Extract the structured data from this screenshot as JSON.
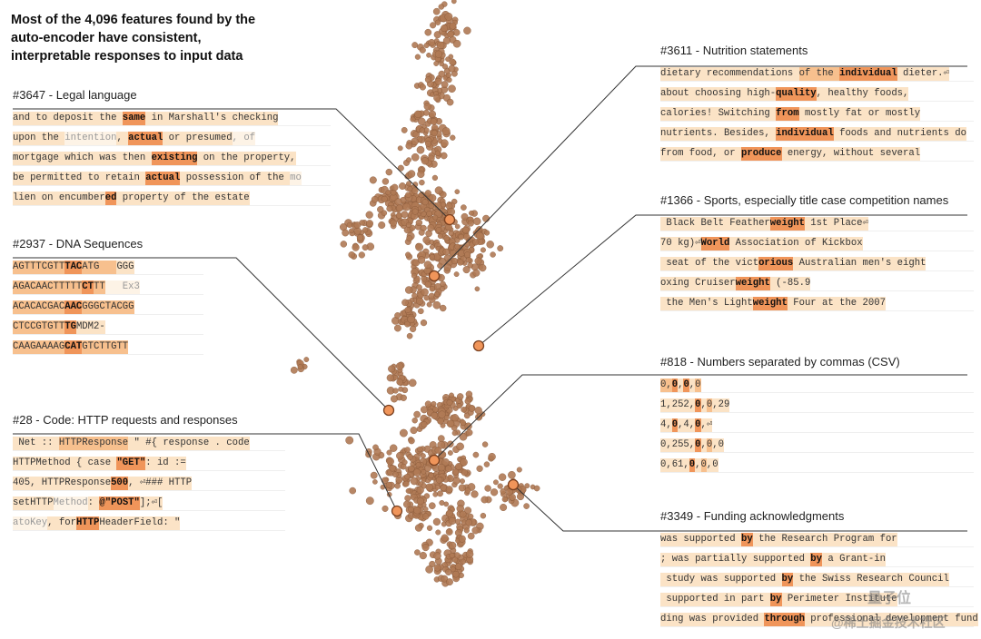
{
  "title_lines": [
    "Most of the 4,096 features found by the",
    "auto-encoder have consistent,",
    "interpretable responses to input data"
  ],
  "colors": {
    "dot": "#b07a55",
    "dot_edge": "#8a5a3a",
    "accent_dot": "#f0955a",
    "line": "#333333"
  },
  "features": [
    {
      "id": "f3647",
      "label": "#3647 - Legal language",
      "rows": [
        [
          [
            "and to deposit the ",
            1
          ],
          [
            "same",
            3,
            true
          ],
          [
            " in Marshall's checking",
            1
          ]
        ],
        [
          [
            "upon the ",
            1
          ],
          [
            "intention",
            0
          ],
          [
            ", ",
            1
          ],
          [
            "actual",
            3,
            true
          ],
          [
            " or presumed",
            1
          ],
          [
            ", of",
            0
          ]
        ],
        [
          [
            "mortgage which was then ",
            1
          ],
          [
            "existing",
            3,
            true
          ],
          [
            " on the property,",
            1
          ]
        ],
        [
          [
            "be permitted to retain ",
            1
          ],
          [
            "actual",
            3,
            true
          ],
          [
            " possession of the ",
            1
          ],
          [
            "mo",
            0
          ]
        ],
        [
          [
            "lien on encumber",
            1
          ],
          [
            "ed",
            3,
            true
          ],
          [
            " property of the estate",
            1
          ]
        ]
      ]
    },
    {
      "id": "f2937",
      "label": "#2937 - DNA Sequences",
      "rows": [
        [
          [
            "AGTTTCGTT",
            2
          ],
          [
            "TAC",
            3,
            true
          ],
          [
            "ATG   ",
            2
          ],
          [
            "GGG",
            1
          ]
        ],
        [
          [
            "AGACAACTTTTT",
            2
          ],
          [
            "CT",
            3,
            true
          ],
          [
            "TT",
            2
          ],
          [
            "   Ex3",
            0
          ]
        ],
        [
          [
            "ACACACGAC",
            2
          ],
          [
            "AAC",
            3,
            true
          ],
          [
            "GGGCTACGG",
            2
          ]
        ],
        [
          [
            "CTCCGTGTT",
            2
          ],
          [
            "TG",
            3,
            true
          ],
          [
            "MDM2-",
            1
          ]
        ],
        [
          [
            "CAAGAAAAG",
            2
          ],
          [
            "CAT",
            3,
            true
          ],
          [
            "GTCTTGTT",
            2
          ]
        ]
      ]
    },
    {
      "id": "f28",
      "label": "#28 - Code: HTTP requests and responses",
      "rows": [
        [
          [
            " Net :: ",
            1
          ],
          [
            "HTTPResponse",
            2
          ],
          [
            " \" #{ ",
            1
          ],
          [
            "response",
            1
          ],
          [
            " . code",
            1
          ]
        ],
        [
          [
            "HTTPMethod { case ",
            1
          ],
          [
            "\"GET\"",
            3,
            true
          ],
          [
            ": id :=",
            1
          ]
        ],
        [
          [
            "405, HTTPResponse",
            1
          ],
          [
            "500",
            3,
            true
          ],
          [
            ", ⏎### HTTP",
            1
          ]
        ],
        [
          [
            "setHTTP",
            1
          ],
          [
            "Method",
            0
          ],
          [
            ": ",
            1
          ],
          [
            "@\"POST\"",
            3,
            true
          ],
          [
            "];⏎[",
            1
          ]
        ],
        [
          [
            "atoKey",
            0
          ],
          [
            ", for",
            1
          ],
          [
            "HTTP",
            3,
            true
          ],
          [
            "HeaderField: \"",
            1
          ]
        ]
      ]
    },
    {
      "id": "f3611",
      "label": "#3611 - Nutrition statements",
      "rows": [
        [
          [
            "dietary recommendations ",
            1
          ],
          [
            "of",
            2
          ],
          [
            " the ",
            2
          ],
          [
            "individual",
            3,
            true
          ],
          [
            " dieter.⏎",
            1
          ]
        ],
        [
          [
            "about choosing high-",
            1
          ],
          [
            "quality",
            3,
            true
          ],
          [
            ", healthy foods,",
            1
          ]
        ],
        [
          [
            "calories! Switching ",
            1
          ],
          [
            "from",
            3,
            true
          ],
          [
            " mostly fat or mostly",
            1
          ]
        ],
        [
          [
            "nutrients. ",
            1
          ],
          [
            "Besides, ",
            1
          ],
          [
            "individual",
            3,
            true
          ],
          [
            " foods and nutrients do",
            1
          ]
        ],
        [
          [
            "from food, or ",
            1
          ],
          [
            "produce",
            3,
            true
          ],
          [
            " energy, without several",
            1
          ]
        ]
      ]
    },
    {
      "id": "f1366",
      "label": "#1366 - Sports, especially title case competition names",
      "rows": [
        [
          [
            " Black Belt Feather",
            1
          ],
          [
            "weight",
            3,
            true
          ],
          [
            " 1st Place⏎",
            1
          ]
        ],
        [
          [
            "70 kg)⏎",
            1
          ],
          [
            "World",
            3,
            true
          ],
          [
            " Association of Kickbox",
            1
          ]
        ],
        [
          [
            " seat of the vict",
            1
          ],
          [
            "orious",
            3,
            true
          ],
          [
            " Australian men's eight",
            1
          ]
        ],
        [
          [
            "oxing Cruiser",
            1
          ],
          [
            "weight",
            3,
            true
          ],
          [
            " (-85.9",
            1
          ]
        ],
        [
          [
            " the Men's Light",
            1
          ],
          [
            "weight",
            3,
            true
          ],
          [
            " Four at the 2007",
            1
          ]
        ]
      ]
    },
    {
      "id": "f818",
      "label": "#818 - Numbers separated by commas (CSV)",
      "rows": [
        [
          [
            "0,",
            2
          ],
          [
            "0",
            3,
            true
          ],
          [
            ",",
            1
          ],
          [
            "0",
            3,
            true
          ],
          [
            ",",
            1
          ],
          [
            "0",
            2
          ]
        ],
        [
          [
            "1,252,",
            1
          ],
          [
            "0",
            3,
            true
          ],
          [
            ",",
            1
          ],
          [
            "0",
            2
          ],
          [
            ",29",
            1
          ]
        ],
        [
          [
            "4,",
            1
          ],
          [
            "0",
            3,
            true
          ],
          [
            ",4,",
            1
          ],
          [
            "0",
            3,
            true
          ],
          [
            ",⏎",
            1
          ]
        ],
        [
          [
            "0,255,",
            1
          ],
          [
            "0",
            3,
            true
          ],
          [
            ",",
            1
          ],
          [
            "0",
            2
          ],
          [
            ",0",
            1
          ]
        ],
        [
          [
            "0,61,",
            1
          ],
          [
            "0",
            3,
            true
          ],
          [
            ",",
            1
          ],
          [
            "0",
            2
          ],
          [
            ",0",
            1
          ]
        ]
      ]
    },
    {
      "id": "f3349",
      "label": "#3349 - Funding acknowledgments",
      "rows": [
        [
          [
            "was supported ",
            1
          ],
          [
            "by",
            3,
            true
          ],
          [
            " the Research Program for",
            1
          ]
        ],
        [
          [
            "; was partially supported ",
            1
          ],
          [
            "by",
            3,
            true
          ],
          [
            " a Grant-in",
            1
          ]
        ],
        [
          [
            " study was supported ",
            1
          ],
          [
            "by",
            3,
            true
          ],
          [
            " the Swiss Research Council",
            1
          ]
        ],
        [
          [
            " supported in part ",
            1
          ],
          [
            "by",
            3,
            true
          ],
          [
            " Perimeter Institute",
            1
          ]
        ],
        [
          [
            "ding was provided ",
            1
          ],
          [
            "through",
            3,
            true
          ],
          [
            " professional development fund",
            1
          ]
        ]
      ]
    }
  ],
  "watermark": {
    "line1": "量子位",
    "line2": "@稀土掘金技术社区"
  }
}
